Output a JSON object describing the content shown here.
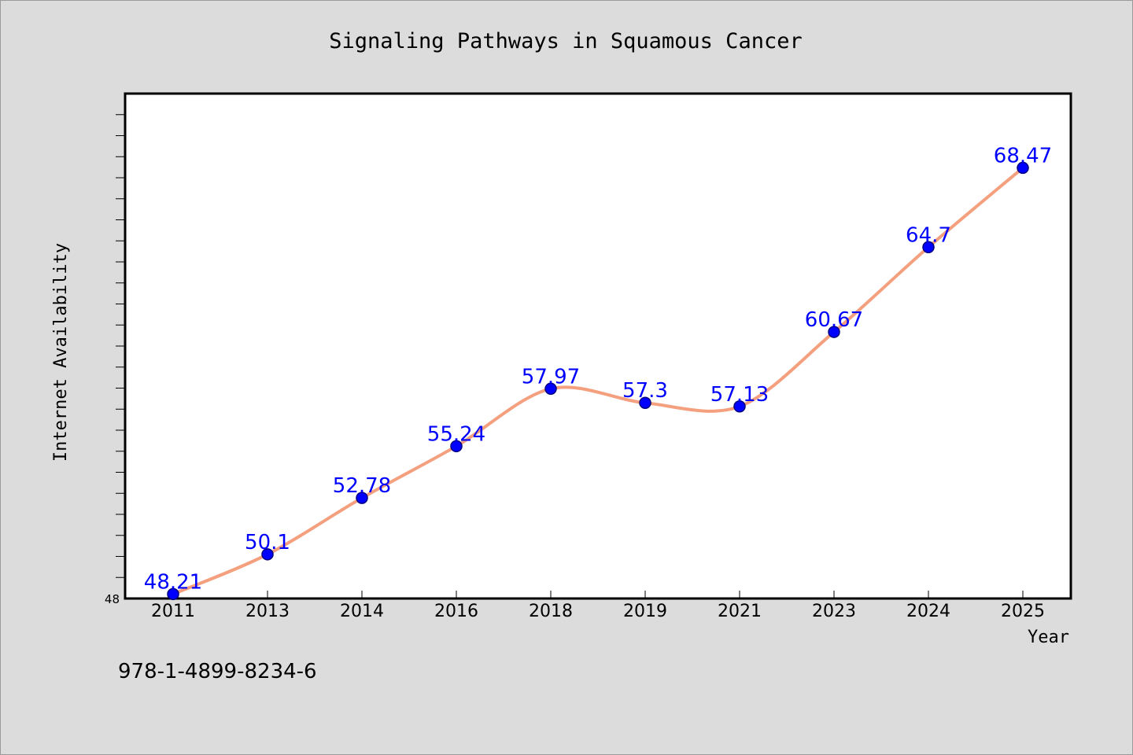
{
  "chart_data": {
    "type": "line",
    "title": "Signaling Pathways in Squamous Cancer",
    "xlabel": "Year",
    "ylabel": "Internet Availability",
    "categories": [
      "2011",
      "2013",
      "2014",
      "2016",
      "2018",
      "2019",
      "2021",
      "2023",
      "2024",
      "2025"
    ],
    "series": [
      {
        "values": [
          48.21,
          50.1,
          52.78,
          55.24,
          57.97,
          57.3,
          57.13,
          60.67,
          64.7,
          68.47
        ],
        "data_labels": [
          "48.21",
          "50.1",
          "52.78",
          "55.24",
          "57.97",
          "57.3",
          "57.13",
          "60.67",
          "64.7",
          "68.47"
        ]
      }
    ],
    "ylim": [
      48,
      72
    ],
    "y_tick_labels": [
      "48"
    ],
    "grid": false,
    "colors": {
      "line": "#f4a07e",
      "marker": "#0000ff",
      "marker_edge": "#000080",
      "data_label": "#0000ff",
      "plot_bg": "#ffffff",
      "page_bg": "#dcdcdc"
    }
  },
  "footer": {
    "isbn": "978-1-4899-8234-6"
  }
}
